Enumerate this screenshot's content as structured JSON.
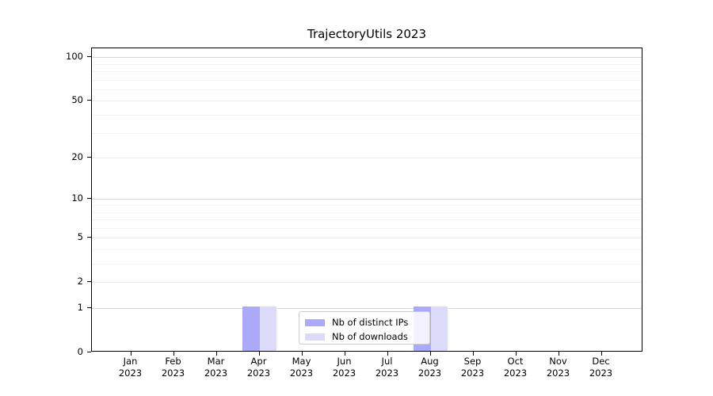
{
  "chart_data": {
    "type": "bar",
    "title": "TrajectoryUtils 2023",
    "xlabel": "",
    "ylabel": "",
    "categories": [
      {
        "month": "Jan",
        "year": "2023"
      },
      {
        "month": "Feb",
        "year": "2023"
      },
      {
        "month": "Mar",
        "year": "2023"
      },
      {
        "month": "Apr",
        "year": "2023"
      },
      {
        "month": "May",
        "year": "2023"
      },
      {
        "month": "Jun",
        "year": "2023"
      },
      {
        "month": "Jul",
        "year": "2023"
      },
      {
        "month": "Aug",
        "year": "2023"
      },
      {
        "month": "Sep",
        "year": "2023"
      },
      {
        "month": "Oct",
        "year": "2023"
      },
      {
        "month": "Nov",
        "year": "2023"
      },
      {
        "month": "Dec",
        "year": "2023"
      }
    ],
    "series": [
      {
        "name": "Nb of distinct IPs",
        "color": "#abaaf8",
        "values": [
          0,
          0,
          0,
          1,
          0,
          0,
          0,
          1,
          0,
          0,
          0,
          0
        ]
      },
      {
        "name": "Nb of downloads",
        "color": "#dbdaf9",
        "values": [
          0,
          0,
          0,
          1,
          0,
          0,
          0,
          1,
          0,
          0,
          0,
          0
        ]
      }
    ],
    "y_axis": {
      "scale": "log1p",
      "ticks": [
        0,
        1,
        2,
        5,
        10,
        20,
        50,
        100
      ],
      "ylim": [
        0,
        115
      ]
    },
    "grid": {
      "shown": true,
      "strong_lines": [
        1,
        10,
        100
      ],
      "mid_lines": [
        2,
        5,
        20,
        50
      ],
      "minor_lines": [
        3,
        4,
        6,
        7,
        8,
        9,
        30,
        40,
        60,
        70,
        80,
        90
      ],
      "strong_color": "#d7d7d7",
      "mid_color": "#ebebeb",
      "minor_color": "#f4f4f4"
    },
    "legend": {
      "position": "lower center",
      "entries": [
        "Nb of distinct IPs",
        "Nb of downloads"
      ]
    }
  }
}
